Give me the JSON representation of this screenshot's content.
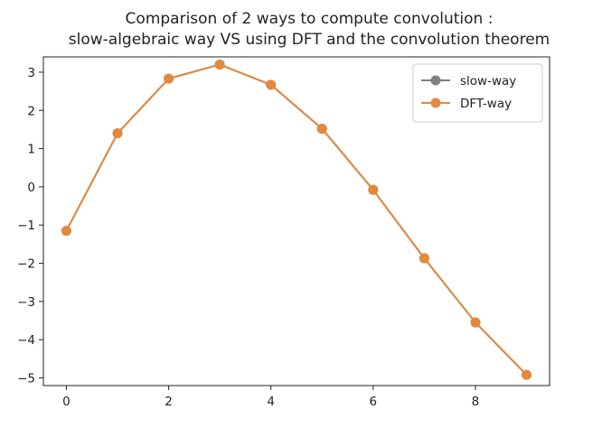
{
  "chart_data": {
    "type": "line",
    "title": [
      "Comparison of 2 ways to compute convolution :",
      "slow-algebraic way VS using DFT and the convolution theorem"
    ],
    "xlabel": "",
    "ylabel": "",
    "x": [
      0,
      1,
      2,
      3,
      4,
      5,
      6,
      7,
      8,
      9
    ],
    "xlim": [
      -0.45,
      9.45
    ],
    "ylim": [
      -5.2,
      3.4
    ],
    "xticks": [
      0,
      2,
      4,
      6,
      8
    ],
    "yticks": [
      -5,
      -4,
      -3,
      -2,
      -1,
      0,
      1,
      2,
      3
    ],
    "ytick_labels": [
      "−5",
      "−4",
      "−3",
      "−2",
      "−1",
      "0",
      "1",
      "2",
      "3"
    ],
    "grid": false,
    "legend_position": "top-right",
    "series": [
      {
        "name": "slow-way",
        "color": "#808080",
        "marker": "circle",
        "values": [
          -1.15,
          1.4,
          2.83,
          3.2,
          2.67,
          1.52,
          -0.08,
          -1.87,
          -3.55,
          -4.92
        ]
      },
      {
        "name": "DFT-way",
        "color": "#E3893E",
        "marker": "circle",
        "values": [
          -1.15,
          1.4,
          2.83,
          3.2,
          2.67,
          1.52,
          -0.08,
          -1.87,
          -3.55,
          -4.92
        ]
      }
    ]
  }
}
